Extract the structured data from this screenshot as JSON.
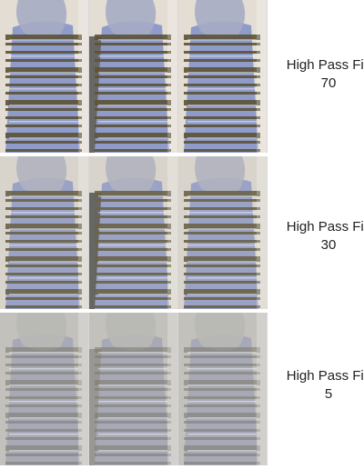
{
  "rows": [
    {
      "label_title": "High Pass Filt",
      "label_value": "70",
      "palette": {
        "bg": "#d9d4cc",
        "blue": "#8f9bc9",
        "gold": "#5b5236",
        "wall": "#efe9dc",
        "sleeve": "#a6acc4"
      }
    },
    {
      "label_title": "High Pass Filt",
      "label_value": "30",
      "palette": {
        "bg": "#cfcbc3",
        "blue": "#9aa3c6",
        "gold": "#6a6248",
        "wall": "#e3e0d8",
        "sleeve": "#b2b3bf"
      }
    },
    {
      "label_title": "High Pass Filt",
      "label_value": "5",
      "palette": {
        "bg": "#bdbcb6",
        "blue": "#a7aab6",
        "gold": "#7c776a",
        "wall": "#c8c7c1",
        "sleeve": "#b9b9b5"
      }
    }
  ]
}
